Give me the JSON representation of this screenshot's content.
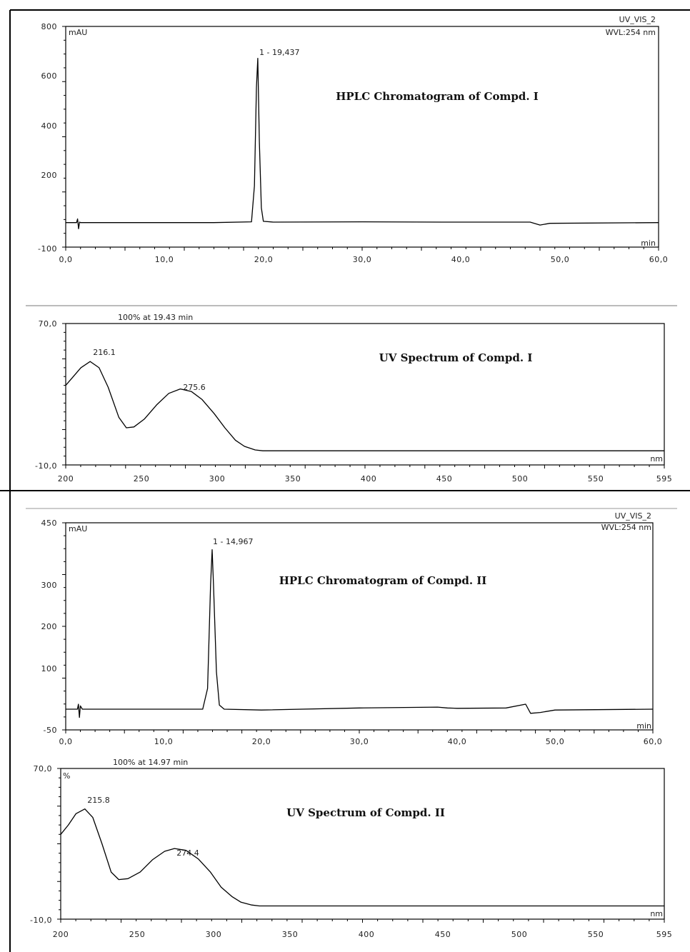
{
  "chart_data": [
    {
      "type": "line",
      "title": "HPLC Chromatogram of Compd. I",
      "corner_labels": [
        "UV_VIS_2",
        "WVL:254 nm"
      ],
      "ylabel": "mAU",
      "xlabel": "min",
      "xlim": [
        0,
        60
      ],
      "ylim": [
        -100,
        800
      ],
      "xticks": [
        "0,0",
        "10,0",
        "20,0",
        "30,0",
        "40,0",
        "50,0",
        "60,0"
      ],
      "yticks": [
        "-100",
        "200",
        "400",
        "600",
        "800"
      ],
      "peak_label": "1 - 19,437",
      "series": [
        {
          "x": [
            0,
            1.1,
            1.2,
            1.3,
            1.4,
            1.5,
            15,
            18.8,
            19.1,
            19.3,
            19.437,
            19.6,
            19.8,
            20,
            21,
            30,
            38,
            45,
            47,
            48,
            49,
            60
          ],
          "y": [
            0,
            0,
            15,
            -25,
            2,
            0,
            0,
            3,
            150,
            550,
            670,
            330,
            60,
            5,
            2,
            3,
            2,
            2,
            2,
            -10,
            -3,
            0
          ]
        }
      ]
    },
    {
      "type": "line",
      "title": "UV Spectrum of Compd. I",
      "subtitle": "100% at 19.43 min",
      "xlabel": "nm",
      "xlim": [
        200,
        595
      ],
      "ylim": [
        -10,
        70
      ],
      "xticks": [
        "200",
        "250",
        "300",
        "350",
        "400",
        "450",
        "500",
        "550",
        "595"
      ],
      "yticks": [
        "-10,0",
        "70,0"
      ],
      "peak_labels": [
        "216.1",
        "275.6"
      ],
      "series": [
        {
          "x": [
            200,
            205,
            210,
            216.1,
            222,
            228,
            235,
            240,
            245,
            252,
            260,
            268,
            275.6,
            283,
            290,
            298,
            305,
            312,
            318,
            325,
            330,
            400,
            500,
            595
          ],
          "y": [
            35,
            40,
            45,
            48.5,
            45,
            34,
            17,
            11,
            11.5,
            16,
            24,
            30.5,
            33,
            31.5,
            27,
            19,
            11,
            4,
            0.5,
            -1.5,
            -2,
            -2,
            -2,
            -2
          ]
        }
      ]
    },
    {
      "type": "line",
      "title": "HPLC Chromatogram of Compd. II",
      "corner_labels": [
        "UV_VIS_2",
        "WVL:254 nm"
      ],
      "ylabel": "mAU",
      "xlabel": "min",
      "xlim": [
        0,
        60
      ],
      "ylim": [
        -50,
        450
      ],
      "xticks": [
        "0,0",
        "10,0",
        "20,0",
        "30,0",
        "40,0",
        "50,0",
        "60,0"
      ],
      "yticks": [
        "-50",
        "100",
        "200",
        "300",
        "450"
      ],
      "peak_label": "1 - 14,967",
      "series": [
        {
          "x": [
            0,
            1.2,
            1.3,
            1.4,
            1.5,
            1.7,
            14,
            14.5,
            14.8,
            14.967,
            15.1,
            15.4,
            15.7,
            16.2,
            20,
            30,
            38,
            39,
            40,
            45,
            47,
            47.5,
            48.5,
            50,
            60
          ],
          "y": [
            0,
            0,
            12,
            -20,
            8,
            0,
            0,
            50,
            300,
            385,
            300,
            90,
            10,
            0,
            -2,
            3,
            5,
            3,
            2,
            3,
            12,
            -10,
            -8,
            -2,
            0
          ]
        }
      ]
    },
    {
      "type": "line",
      "title": "UV Spectrum of Compd. II",
      "subtitle": "100% at 14.97 min",
      "ylabel": "%",
      "xlabel": "nm",
      "xlim": [
        200,
        595
      ],
      "ylim": [
        -10,
        70
      ],
      "xticks": [
        "200",
        "250",
        "300",
        "350",
        "400",
        "450",
        "500",
        "550",
        "595"
      ],
      "yticks": [
        "-10,0",
        "70,0"
      ],
      "peak_labels": [
        "215.8",
        "274.4"
      ],
      "series": [
        {
          "x": [
            200,
            205,
            210,
            215.8,
            221,
            227,
            233,
            238,
            244,
            252,
            260,
            268,
            274.4,
            282,
            290,
            298,
            305,
            312,
            318,
            325,
            330,
            400,
            500,
            595
          ],
          "y": [
            35,
            40,
            46,
            48.5,
            44,
            30,
            15,
            11,
            11.5,
            15,
            21.5,
            26,
            27.5,
            26.5,
            22,
            15,
            7,
            2,
            -1,
            -2.5,
            -3,
            -3,
            -3,
            -3
          ]
        }
      ]
    }
  ]
}
